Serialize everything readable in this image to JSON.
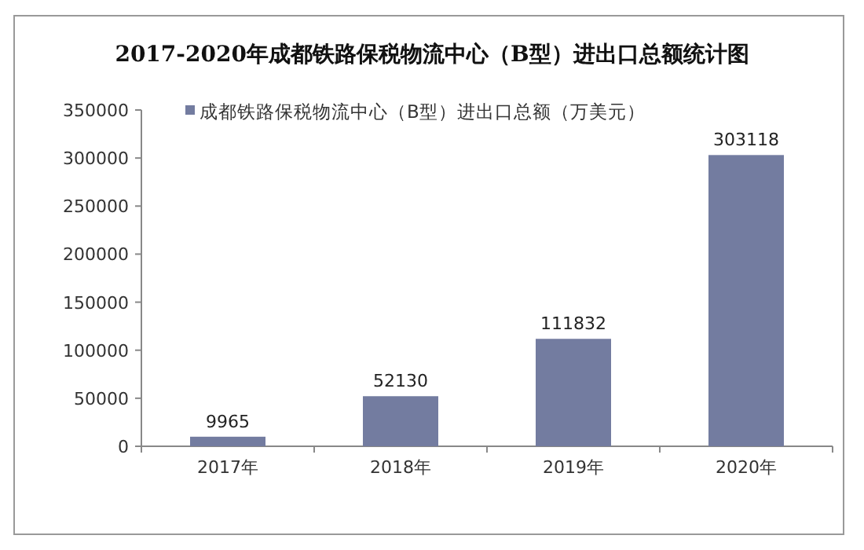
{
  "chart_data": {
    "type": "bar",
    "title": "2017-2020年成都铁路保税物流中心（B型）进出口总额统计图",
    "categories": [
      "2017年",
      "2018年",
      "2019年",
      "2020年"
    ],
    "series": [
      {
        "name": "成都铁路保税物流中心（B型）进出口总额（万美元）",
        "color": "#737ca0",
        "values": [
          9965,
          52130,
          111832,
          303118
        ]
      }
    ],
    "ylim": [
      0,
      350000
    ],
    "yticks": [
      0,
      50000,
      100000,
      150000,
      200000,
      250000,
      300000,
      350000
    ],
    "data_labels": true,
    "grid": false,
    "legend": "top"
  }
}
